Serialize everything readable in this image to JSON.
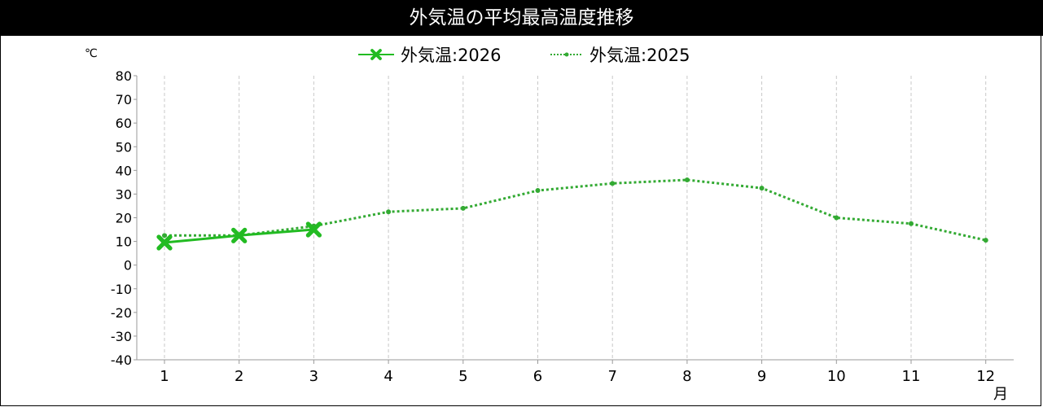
{
  "chart_data": {
    "type": "line",
    "title": "外気温の平均最高温度推移",
    "ylabel": "℃",
    "xlabel": "月",
    "ylim": [
      -40,
      80
    ],
    "yticks": [
      80,
      70,
      60,
      50,
      40,
      30,
      20,
      10,
      0,
      -10,
      -20,
      -30,
      -40
    ],
    "categories": [
      "1",
      "2",
      "3",
      "4",
      "5",
      "6",
      "7",
      "8",
      "9",
      "10",
      "11",
      "12"
    ],
    "grid": "vertical dashed",
    "legend_position": "top-center",
    "series": [
      {
        "name": "外気温:2026",
        "color": "#22bb22",
        "style": "solid",
        "marker": "x-mark",
        "values": [
          9.5,
          12.5,
          15,
          null,
          null,
          null,
          null,
          null,
          null,
          null,
          null,
          null
        ]
      },
      {
        "name": "外気温:2025",
        "color": "#33aa33",
        "style": "dotted",
        "marker": "dot",
        "values": [
          12.5,
          12.5,
          16.5,
          22.5,
          24,
          31.5,
          34.5,
          36,
          32.5,
          20,
          17.5,
          10.5
        ]
      }
    ]
  }
}
